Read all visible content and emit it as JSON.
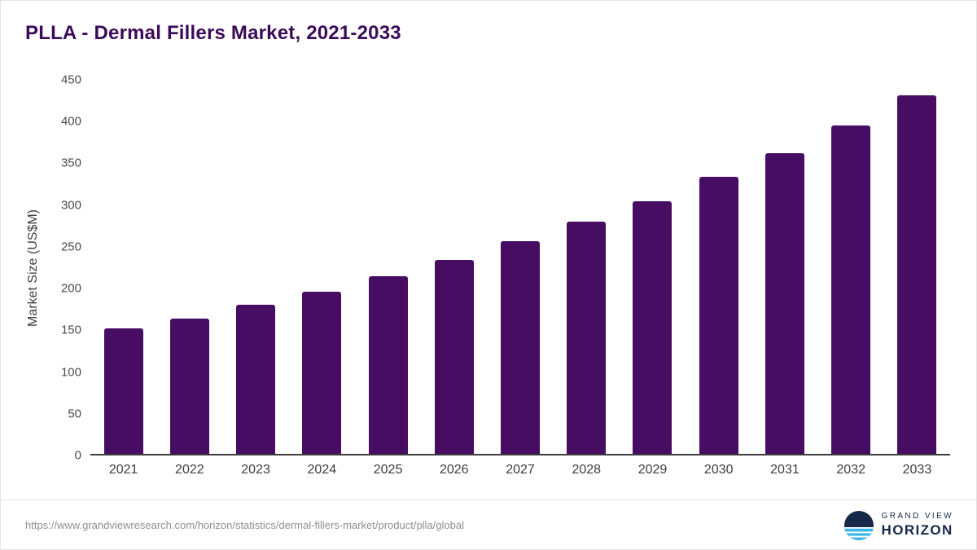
{
  "title": "PLLA - Dermal Fillers Market, 2021-2033",
  "footer": {
    "source_url": "https://www.grandviewresearch.com/horizon/statistics/dermal-fillers-market/product/plla/global"
  },
  "logo": {
    "line1": "GRAND VIEW",
    "line2": "HORIZON"
  },
  "colors": {
    "bar": "#470d63",
    "title": "#3b0a59",
    "axis_text": "#4a4a4a",
    "logo_navy": "#16284a",
    "logo_blue": "#3ab7e8"
  },
  "chart_data": {
    "type": "bar",
    "categories": [
      "2021",
      "2022",
      "2023",
      "2024",
      "2025",
      "2026",
      "2027",
      "2028",
      "2029",
      "2030",
      "2031",
      "2032",
      "2033"
    ],
    "values": [
      151,
      163,
      179,
      195,
      214,
      233,
      256,
      279,
      304,
      333,
      362,
      395,
      431
    ],
    "title": "PLLA - Dermal Fillers Market, 2021-2033",
    "xlabel": "",
    "ylabel": "Market Size (US$M)",
    "ylim": [
      0,
      450
    ],
    "ytick_step": 50,
    "grid": false,
    "legend": false
  }
}
